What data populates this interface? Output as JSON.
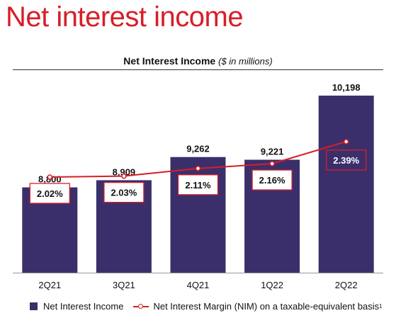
{
  "page": {
    "title": "Net interest income"
  },
  "chart_data": {
    "type": "bar",
    "title": "Net Interest Income",
    "subtitle": "($ in millions)",
    "categories": [
      "2Q21",
      "3Q21",
      "4Q21",
      "1Q22",
      "2Q22"
    ],
    "ylim": [
      0,
      10198
    ],
    "series": [
      {
        "name": "Net Interest Income",
        "type": "bar",
        "values": [
          8800,
          8909,
          9262,
          9221,
          10198
        ],
        "value_labels": [
          "8,800",
          "8,909",
          "9,262",
          "9,221",
          "10,198"
        ],
        "color": "#3b2f6b"
      },
      {
        "name": "Net Interest Margin (NIM) on a taxable-equivalent basis",
        "footnote": "1",
        "type": "line",
        "values": [
          2.02,
          2.03,
          2.11,
          2.16,
          2.39
        ],
        "value_labels": [
          "2.02%",
          "2.03%",
          "2.11%",
          "2.16%",
          "2.39%"
        ],
        "color": "#d71e28"
      }
    ],
    "grid": false,
    "legend_position": "bottom-left"
  }
}
